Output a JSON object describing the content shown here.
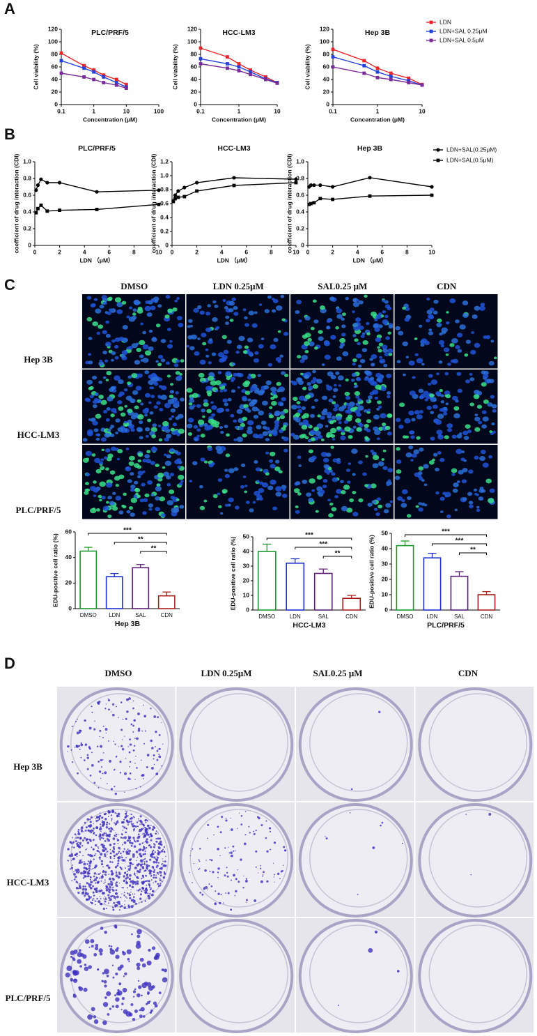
{
  "panels": [
    "A",
    "B",
    "C",
    "D"
  ],
  "micrographs": {
    "columns": [
      "DMSO",
      "LDN 0.25μM",
      "SAL0.25 μM",
      "CDN"
    ],
    "rows": [
      "Hep 3B",
      "HCC-LM3",
      "PLC/PRF/5"
    ]
  },
  "colony_plates": {
    "columns": [
      "DMSO",
      "LDN 0.25μM",
      "SAL0.25 μM",
      "CDN"
    ],
    "rows": [
      "Hep 3B",
      "HCC-LM3",
      "PLC/PRF/5"
    ]
  },
  "chart_data": [
    {
      "type": "line",
      "title": "PLC/PRF/5",
      "xlabel": "Concentration (μM)",
      "ylabel": "Cell viability (%)",
      "xscale": "log",
      "x": [
        0.1,
        0.5,
        1,
        2,
        5,
        10
      ],
      "xlim": [
        0.1,
        100
      ],
      "xticks": [
        0.1,
        1,
        10,
        100
      ],
      "ylim": [
        0,
        120
      ],
      "yticks": [
        0,
        20,
        40,
        60,
        80,
        100,
        120
      ],
      "series": [
        {
          "color": "#e8262a",
          "marker": "square",
          "values": [
            82,
            62,
            55,
            47,
            40,
            32
          ]
        },
        {
          "color": "#2340d8",
          "marker": "square",
          "values": [
            70,
            58,
            52,
            44,
            35,
            28
          ]
        },
        {
          "color": "#7a2a9a",
          "marker": "square",
          "values": [
            50,
            44,
            40,
            35,
            31,
            26
          ]
        }
      ]
    },
    {
      "type": "line",
      "title": "HCC-LM3",
      "xlabel": "Concentration (μM)",
      "ylabel": "Cell viability (%)",
      "xscale": "log",
      "x": [
        0.1,
        0.5,
        1,
        2,
        5,
        10
      ],
      "xlim": [
        0.1,
        10
      ],
      "xticks": [
        0.1,
        1,
        10
      ],
      "ylim": [
        0,
        120
      ],
      "yticks": [
        0,
        20,
        40,
        60,
        80,
        100,
        120
      ],
      "series": [
        {
          "color": "#e8262a",
          "marker": "square",
          "values": [
            90,
            76,
            65,
            55,
            44,
            35
          ]
        },
        {
          "color": "#2340d8",
          "marker": "square",
          "values": [
            73,
            65,
            60,
            52,
            41,
            35
          ]
        },
        {
          "color": "#7a2a9a",
          "marker": "square",
          "values": [
            65,
            58,
            54,
            48,
            40,
            34
          ]
        }
      ]
    },
    {
      "type": "line",
      "title": "Hep 3B",
      "xlabel": "Concentration (μM)",
      "ylabel": "Cell viability (%)",
      "xscale": "log",
      "legend": "upper right",
      "x": [
        0.1,
        0.5,
        1,
        2,
        5,
        10
      ],
      "xlim": [
        0.1,
        10
      ],
      "xticks": [
        0.1,
        1,
        10
      ],
      "ylim": [
        0,
        120
      ],
      "yticks": [
        0,
        20,
        40,
        60,
        80,
        100,
        120
      ],
      "series": [
        {
          "name": "LDN",
          "color": "#e8262a",
          "marker": "square",
          "values": [
            88,
            70,
            58,
            50,
            42,
            32
          ]
        },
        {
          "name": "LDN+SAL 0.25μM",
          "color": "#2340d8",
          "marker": "square",
          "values": [
            76,
            62,
            52,
            45,
            38,
            31
          ]
        },
        {
          "name": "LDN+SAL 0.5μM",
          "color": "#7a2a9a",
          "marker": "square",
          "values": [
            60,
            50,
            43,
            40,
            35,
            31
          ]
        }
      ]
    },
    {
      "type": "line",
      "title": "PLC/PRF/5",
      "xlabel": "LDN （μM）",
      "ylabel": "coefficient of drug interaction (CDI)",
      "x": [
        0.1,
        0.25,
        0.5,
        1,
        2,
        5,
        10
      ],
      "xlim": [
        0,
        10
      ],
      "xticks": [
        0,
        2,
        4,
        6,
        8,
        10
      ],
      "ylim": [
        0,
        1
      ],
      "yticks": [
        0,
        0.2,
        0.4,
        0.6,
        0.8,
        {
          "value": 1,
          "label": "1.0"
        }
      ],
      "series": [
        {
          "color": "#000000",
          "marker": "circle",
          "values": [
            0.66,
            0.72,
            0.79,
            0.75,
            0.75,
            0.64,
            0.66
          ]
        },
        {
          "color": "#000000",
          "marker": "square",
          "values": [
            0.39,
            0.44,
            0.48,
            0.41,
            0.42,
            0.43,
            0.49
          ]
        }
      ]
    },
    {
      "type": "line",
      "title": "HCC-LM3",
      "xlabel": "LDN （μM）",
      "ylabel": "coefficient of drug interaction (CDI)",
      "x": [
        0.1,
        0.25,
        0.5,
        1,
        2,
        5,
        10
      ],
      "xlim": [
        0,
        10
      ],
      "xticks": [
        0,
        2,
        4,
        6,
        8,
        10
      ],
      "ylim": [
        0,
        1.2
      ],
      "yticks": [
        0,
        0.2,
        0.4,
        0.6,
        0.8,
        {
          "value": 1,
          "label": "1.0"
        },
        1.2
      ],
      "series": [
        {
          "color": "#000000",
          "marker": "circle",
          "values": [
            0.64,
            0.72,
            0.78,
            0.83,
            0.9,
            0.97,
            0.95
          ]
        },
        {
          "color": "#000000",
          "marker": "square",
          "values": [
            0.63,
            0.67,
            0.69,
            0.7,
            0.78,
            0.86,
            0.9
          ]
        }
      ]
    },
    {
      "type": "line",
      "title": "Hep 3B",
      "xlabel": "LDN （μM）",
      "ylabel": "coefficient of drug interaction (CDI)",
      "legend": "upper right",
      "x": [
        0.1,
        0.25,
        0.5,
        1,
        2,
        5,
        10
      ],
      "xlim": [
        0,
        10
      ],
      "xticks": [
        0,
        2,
        4,
        6,
        8,
        10
      ],
      "ylim": [
        0,
        1
      ],
      "yticks": [
        0,
        0.2,
        0.4,
        0.6,
        0.8,
        {
          "value": 1,
          "label": "1.0"
        }
      ],
      "series": [
        {
          "name": "LDN+SAL(0.25μM)",
          "color": "#000000",
          "marker": "circle",
          "values": [
            0.7,
            0.72,
            0.72,
            0.72,
            0.7,
            0.81,
            0.7
          ]
        },
        {
          "name": "LDN+SAL(0.5μM)",
          "color": "#000000",
          "marker": "square",
          "values": [
            0.49,
            0.5,
            0.51,
            0.56,
            0.55,
            0.59,
            0.6
          ]
        }
      ]
    },
    {
      "type": "bar",
      "xlabel": "Hep 3B",
      "ylabel": "EDU-positive cell ratio (%)",
      "categories": [
        "DMSO",
        "LDN",
        "SAL",
        "CDN"
      ],
      "colors": [
        "#1c9a2e",
        "#1f2fd0",
        "#5b1f78",
        "#a8201c"
      ],
      "values": [
        45,
        25,
        32,
        10
      ],
      "errors": [
        3,
        2.5,
        2.5,
        3
      ],
      "ylim": [
        0,
        60
      ],
      "yticks": [
        0,
        20,
        40,
        60
      ],
      "comparisons": [
        {
          "pair": [
            0,
            3
          ],
          "label": "***"
        },
        {
          "pair": [
            1,
            3
          ],
          "label": "**"
        },
        {
          "pair": [
            2,
            3
          ],
          "label": "**"
        }
      ]
    },
    {
      "type": "bar",
      "xlabel": "HCC-LM3",
      "ylabel": "EDU-positive cell ratio (%)",
      "categories": [
        "DMSO",
        "LDN",
        "SAL",
        "CDN"
      ],
      "colors": [
        "#1c9a2e",
        "#1f2fd0",
        "#5b1f78",
        "#a8201c"
      ],
      "values": [
        40,
        32,
        25,
        8
      ],
      "errors": [
        5,
        3,
        3,
        2
      ],
      "ylim": [
        0,
        50
      ],
      "yticks": [
        0,
        10,
        20,
        30,
        40,
        50
      ],
      "comparisons": [
        {
          "pair": [
            0,
            3
          ],
          "label": "***"
        },
        {
          "pair": [
            1,
            3
          ],
          "label": "***"
        },
        {
          "pair": [
            2,
            3
          ],
          "label": "**"
        }
      ]
    },
    {
      "type": "bar",
      "xlabel": "PLC/PRF/5",
      "ylabel": "EDU-positive cell ratio (%)",
      "categories": [
        "DMSO",
        "LDN",
        "SAL",
        "CDN"
      ],
      "colors": [
        "#1c9a2e",
        "#1f2fd0",
        "#5b1f78",
        "#a8201c"
      ],
      "values": [
        42,
        34,
        22,
        10
      ],
      "errors": [
        3,
        3,
        3,
        2
      ],
      "ylim": [
        0,
        50
      ],
      "yticks": [
        0,
        10,
        20,
        30,
        40,
        50
      ],
      "comparisons": [
        {
          "pair": [
            0,
            3
          ],
          "label": "***"
        },
        {
          "pair": [
            1,
            3
          ],
          "label": "***"
        },
        {
          "pair": [
            2,
            3
          ],
          "label": "**"
        }
      ]
    }
  ]
}
